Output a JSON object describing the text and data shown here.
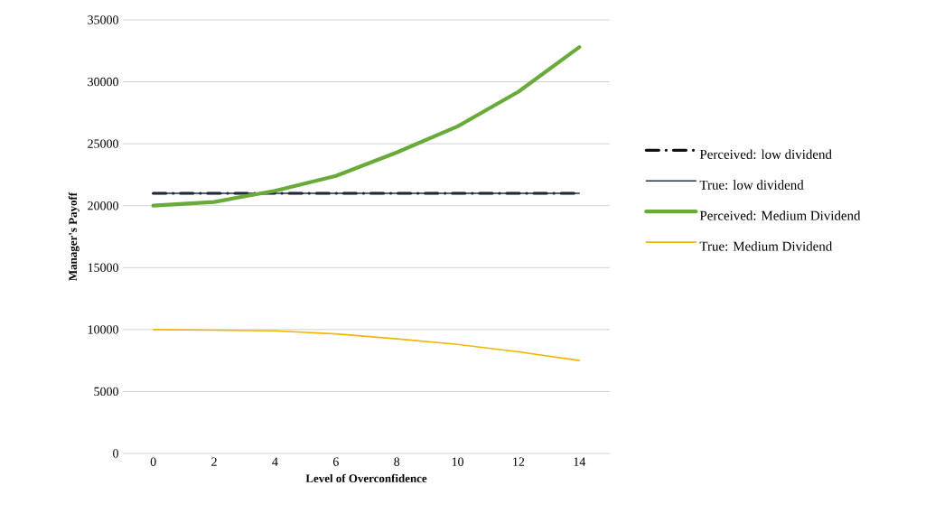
{
  "chart_data": {
    "type": "line",
    "xlabel": "Level of Overconfidence",
    "ylabel": "Manager's Payoff",
    "categories": [
      "0",
      "2",
      "4",
      "6",
      "8",
      "10",
      "12",
      "14"
    ],
    "ylim": [
      0,
      35000
    ],
    "yticks": [
      0,
      5000,
      10000,
      15000,
      20000,
      25000,
      30000,
      35000
    ],
    "grid": "y",
    "legend": "right",
    "series": [
      {
        "name": "Perceived: low dividend",
        "color": "#111111",
        "line_style": "dashed",
        "values": [
          21000,
          21000,
          21000,
          21000,
          21000,
          21000,
          21000,
          21000
        ]
      },
      {
        "name": "True: low dividend",
        "color": "#1f3050",
        "line_style": "solid",
        "values": [
          21000,
          21000,
          21000,
          21000,
          21000,
          21000,
          21000,
          21000
        ]
      },
      {
        "name": "Perceived: Medium Dividend",
        "color": "#6aaa3a",
        "line_style": "solid",
        "values": [
          20000,
          20300,
          21200,
          22400,
          24300,
          26400,
          29200,
          32800
        ]
      },
      {
        "name": "True: Medium Dividend",
        "color": "#f5b400",
        "line_style": "solid",
        "values": [
          10000,
          9950,
          9900,
          9650,
          9250,
          8800,
          8200,
          7500
        ]
      }
    ]
  }
}
